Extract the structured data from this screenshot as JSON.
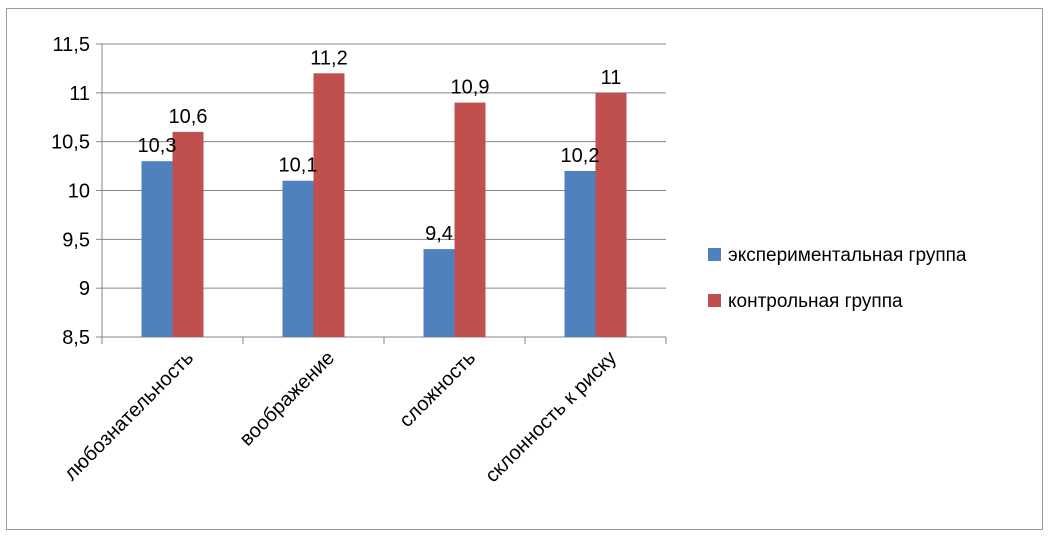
{
  "chart_data": {
    "type": "bar",
    "categories": [
      "любознательность",
      "воображение",
      "сложность",
      "склонность к риску"
    ],
    "series": [
      {
        "name": "экспериментальная группа",
        "values": [
          10.3,
          10.1,
          9.4,
          10.2
        ],
        "color": "#4F81BD"
      },
      {
        "name": "контрольная группа",
        "values": [
          10.6,
          11.2,
          10.9,
          11
        ],
        "color": "#C0504D"
      }
    ],
    "data_labels": [
      [
        "10,3",
        "10,1",
        "9,4",
        "10,2"
      ],
      [
        "10,6",
        "11,2",
        "10,9",
        "11"
      ]
    ],
    "ylim": [
      8.5,
      11.5
    ],
    "yticks": [
      8.5,
      9,
      9.5,
      10,
      10.5,
      11,
      11.5
    ],
    "ytick_labels": [
      "8,5",
      "9",
      "9,5",
      "10",
      "10,5",
      "11",
      "11,5"
    ],
    "grid": true,
    "legend_position": "right",
    "title": "",
    "xlabel": "",
    "ylabel": ""
  }
}
